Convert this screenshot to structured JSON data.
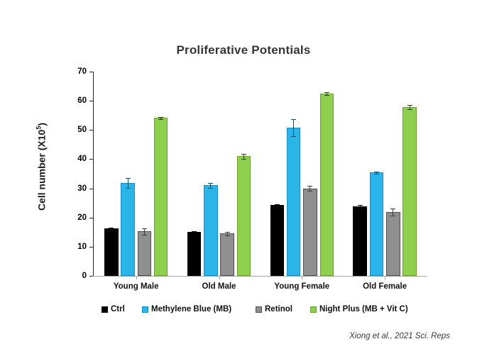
{
  "page": {
    "title": "Proliferative Potentials",
    "citation": "Xiong et al., 2021 Sci. Reps",
    "background": "#ffffff"
  },
  "y_axis": {
    "label_pre": "Cell number (X10",
    "label_sup": "5",
    "label_post": ")"
  },
  "chart_data": {
    "type": "bar",
    "title": "Proliferative Potentials",
    "ylabel": "Cell number (X10^5)",
    "xlabel": "",
    "ylim": [
      0,
      70
    ],
    "yticks": [
      0,
      10,
      20,
      30,
      40,
      50,
      60,
      70
    ],
    "grid": false,
    "legend_position": "bottom",
    "error_bars": true,
    "categories": [
      "Young Male",
      "Old Male",
      "Young Female",
      "Old Female"
    ],
    "series": [
      {
        "name": "Ctrl",
        "color": "#000000",
        "border_color": "#000000",
        "error_color": "#000000",
        "values": [
          16.2,
          15.0,
          24.2,
          23.8
        ],
        "errors": [
          0.4,
          0.4,
          0.3,
          0.4
        ]
      },
      {
        "name": "Methylene Blue (MB)",
        "color": "#2bb4e8",
        "border_color": "#1a8cc0",
        "error_color": "#15506e",
        "values": [
          31.8,
          31.0,
          50.8,
          35.4
        ],
        "errors": [
          1.7,
          0.8,
          2.8,
          0.4
        ]
      },
      {
        "name": "Retinol",
        "color": "#8f8f8f",
        "border_color": "#4f4f4f",
        "error_color": "#3c3c3c",
        "values": [
          15.2,
          14.5,
          30.0,
          21.8
        ],
        "errors": [
          1.0,
          0.6,
          0.8,
          1.2
        ]
      },
      {
        "name": "Night Plus (MB + Vit C)",
        "color": "#8ed04e",
        "border_color": "#69a32e",
        "error_color": "#234a0e",
        "values": [
          54.1,
          41.0,
          62.4,
          57.9
        ],
        "errors": [
          0.3,
          0.8,
          0.5,
          0.7
        ]
      }
    ]
  }
}
